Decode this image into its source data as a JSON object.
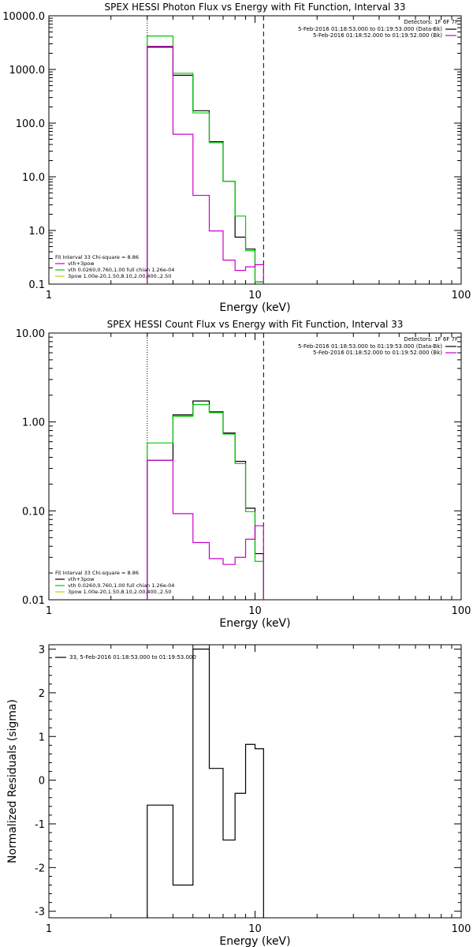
{
  "chart_data": [
    {
      "type": "line",
      "title": "SPEX HESSI Photon Flux vs Energy with Fit Function, Interval 33",
      "xlabel": "Energy (keV)",
      "ylabel": "",
      "x_scale": "log",
      "y_scale": "log",
      "xlim": [
        1,
        100
      ],
      "ylim": [
        0.1,
        10000
      ],
      "x_ticks": [
        {
          "v": 1,
          "label": "1"
        },
        {
          "v": 10,
          "label": "10"
        },
        {
          "v": 100,
          "label": "100"
        }
      ],
      "y_ticks": [
        {
          "v": 0.1,
          "label": "0.1"
        },
        {
          "v": 1,
          "label": "1.0"
        },
        {
          "v": 10,
          "label": "10.0"
        },
        {
          "v": 100,
          "label": "100.0"
        },
        {
          "v": 1000,
          "label": "1000.0"
        },
        {
          "v": 10000,
          "label": "10000.0"
        }
      ],
      "vlines": [
        {
          "x": 3.0,
          "style": "dotted"
        },
        {
          "x": 11.0,
          "style": "dashed"
        }
      ],
      "detectors": "Detectors: 1F 6F 7F",
      "legend_top": [
        {
          "text": "5-Feb-2016 01:18:53.000 to 01:19:53.000 (Data-Bk)",
          "color": "#000000"
        },
        {
          "text": "5-Feb-2016 01:18:52.000 to 01:19:52.000 (Bk)",
          "color": "#cc00cc"
        }
      ],
      "legend_bottom": [
        {
          "text": "Fit Interval 33   Chi-square = 8.86",
          "color": ""
        },
        {
          "text": "vth+3pow",
          "color": "#cc00cc"
        },
        {
          "text": "vth 0.0260,0.760,1.00  full chian 1.26e-04",
          "color": "#00cc00"
        },
        {
          "text": "3pow 1.00e-20,1.50,8.10,2.00,400.,2.50",
          "color": "#cccc00"
        }
      ],
      "bin_edges": [
        3.0,
        4.0,
        5.0,
        6.0,
        7.0,
        8.0,
        9.0,
        10.0,
        11.0
      ],
      "series": [
        {
          "color": "#000000",
          "values": [
            2600,
            780,
            170,
            45,
            8.2,
            0.75,
            0.45,
            0.11
          ]
        },
        {
          "color": "#00cc00",
          "values": [
            4200,
            850,
            155,
            43,
            8.2,
            1.85,
            0.42,
            0.11
          ]
        },
        {
          "color": "#cc00cc",
          "values": [
            2700,
            62,
            4.5,
            0.98,
            0.28,
            0.18,
            0.21,
            0.23
          ]
        }
      ]
    },
    {
      "type": "line",
      "title": "SPEX HESSI Count Flux vs Energy with Fit Function, Interval 33",
      "xlabel": "Energy (keV)",
      "ylabel": "",
      "x_scale": "log",
      "y_scale": "log",
      "xlim": [
        1,
        100
      ],
      "ylim": [
        0.01,
        10
      ],
      "x_ticks": [
        {
          "v": 1,
          "label": "1"
        },
        {
          "v": 10,
          "label": "10"
        },
        {
          "v": 100,
          "label": "100"
        }
      ],
      "y_ticks": [
        {
          "v": 0.01,
          "label": "0.01"
        },
        {
          "v": 0.1,
          "label": "0.10"
        },
        {
          "v": 1,
          "label": "1.00"
        },
        {
          "v": 10,
          "label": "10.00"
        }
      ],
      "vlines": [
        {
          "x": 3.0,
          "style": "dotted"
        },
        {
          "x": 11.0,
          "style": "dashed"
        }
      ],
      "detectors": "Detectors: 1F 6F 7F",
      "legend_top": [
        {
          "text": "5-Feb-2016 01:18:53.000 to 01:19:53.000 (Data-Bk)",
          "color": "#000000"
        },
        {
          "text": "5-Feb-2016 01:18:52.000 to 01:19:52.000 (Bk)",
          "color": "#cc00cc"
        }
      ],
      "legend_bottom": [
        {
          "text": "Fit Interval 33   Chi-square = 8.86",
          "color": ""
        },
        {
          "text": "vth+3pow",
          "color": "#000000"
        },
        {
          "text": "vth 0.0260,0.760,1.00  full chian 1.26e-04",
          "color": "#00cc00"
        },
        {
          "text": "3pow 1.00e-20,1.50,8.10,2.00,400.,2.50",
          "color": "#cccc00"
        }
      ],
      "bin_edges": [
        3.0,
        4.0,
        5.0,
        6.0,
        7.0,
        8.0,
        9.0,
        10.0,
        11.0
      ],
      "series": [
        {
          "color": "#000000",
          "values": [
            0.37,
            1.2,
            1.72,
            1.3,
            0.75,
            0.36,
            0.107,
            0.033
          ]
        },
        {
          "color": "#00cc00",
          "values": [
            0.58,
            1.16,
            1.57,
            1.27,
            0.73,
            0.34,
            0.098,
            0.027
          ]
        },
        {
          "color": "#cc00cc",
          "values": [
            0.37,
            0.093,
            0.044,
            0.029,
            0.025,
            0.03,
            0.048,
            0.068
          ]
        }
      ]
    },
    {
      "type": "line",
      "title": "",
      "xlabel": "Energy (keV)",
      "ylabel": "Normalized Residuals (sigma)",
      "x_scale": "log",
      "y_scale": "linear",
      "xlim": [
        1,
        100
      ],
      "ylim": [
        -3.15,
        3.1
      ],
      "x_ticks": [
        {
          "v": 1,
          "label": "1"
        },
        {
          "v": 10,
          "label": "10"
        },
        {
          "v": 100,
          "label": "100"
        }
      ],
      "y_ticks": [
        {
          "v": -3,
          "label": "-3"
        },
        {
          "v": -2,
          "label": "-2"
        },
        {
          "v": -1,
          "label": "-1"
        },
        {
          "v": 0,
          "label": "0"
        },
        {
          "v": 1,
          "label": "1"
        },
        {
          "v": 2,
          "label": "2"
        },
        {
          "v": 3,
          "label": "3"
        }
      ],
      "vlines": [],
      "detectors": "",
      "legend_top": [
        {
          "text": "33,  5-Feb-2016 01:18:53.000 to 01:19:53.000",
          "color": "#000000"
        }
      ],
      "legend_bottom": [],
      "bin_edges": [
        3.0,
        4.0,
        5.0,
        6.0,
        7.0,
        8.0,
        9.0,
        10.0,
        11.0
      ],
      "series": [
        {
          "color": "#000000",
          "values": [
            -0.57,
            -2.4,
            3.0,
            0.27,
            -1.37,
            -0.3,
            0.82,
            0.72
          ]
        }
      ]
    }
  ]
}
